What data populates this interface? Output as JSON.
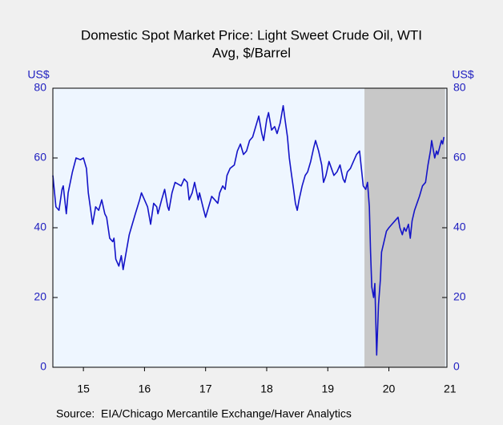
{
  "chart_data": {
    "type": "line",
    "title": [
      "Domestic Spot Market Price: Light Sweet Crude Oil, WTI",
      "Avg, $/Barrel"
    ],
    "ylabel": "US$",
    "y2label": "US$",
    "source": "Source:  EIA/Chicago Mercantile Exchange/Haver Analytics",
    "x": [
      2015.0,
      2015.05,
      2015.1,
      2015.15,
      2015.17,
      2015.22,
      2015.25,
      2015.32,
      2015.38,
      2015.45,
      2015.5,
      2015.55,
      2015.58,
      2015.62,
      2015.65,
      2015.7,
      2015.75,
      2015.8,
      2015.85,
      2015.88,
      2015.93,
      2015.98,
      2016.0,
      2016.03,
      2016.08,
      2016.12,
      2016.15,
      2016.2,
      2016.25,
      2016.3,
      2016.35,
      2016.42,
      2016.45,
      2016.5,
      2016.55,
      2016.6,
      2016.65,
      2016.7,
      2016.72,
      2016.78,
      2016.83,
      2016.88,
      2016.9,
      2016.95,
      2017.0,
      2017.1,
      2017.15,
      2017.2,
      2017.23,
      2017.28,
      2017.32,
      2017.38,
      2017.4,
      2017.47,
      2017.5,
      2017.55,
      2017.6,
      2017.65,
      2017.7,
      2017.73,
      2017.78,
      2017.82,
      2017.85,
      2017.9,
      2017.97,
      2018.02,
      2018.07,
      2018.12,
      2018.17,
      2018.22,
      2018.27,
      2018.32,
      2018.37,
      2018.42,
      2018.45,
      2018.5,
      2018.53,
      2018.58,
      2018.63,
      2018.67,
      2018.72,
      2018.77,
      2018.8,
      2018.84,
      2018.87,
      2018.9,
      2018.94,
      2018.97,
      2019.0,
      2019.03,
      2019.08,
      2019.13,
      2019.17,
      2019.22,
      2019.27,
      2019.3,
      2019.35,
      2019.4,
      2019.43,
      2019.47,
      2019.52,
      2019.56,
      2019.6,
      2019.65,
      2019.7,
      2019.75,
      2019.78,
      2019.82,
      2019.87,
      2019.92,
      2019.97,
      2020.02,
      2020.05,
      2020.08,
      2020.12,
      2020.15,
      2020.18,
      2020.2,
      2020.22,
      2020.25,
      2020.27,
      2020.3,
      2020.33,
      2020.36,
      2020.38,
      2020.42,
      2020.46,
      2020.5,
      2020.55,
      2020.6,
      2020.65,
      2020.68,
      2020.72,
      2020.75,
      2020.78,
      2020.82,
      2020.85,
      2020.88,
      2020.92,
      2020.96,
      2021.0,
      2021.05,
      2021.1,
      2021.14,
      2021.18,
      2021.2,
      2021.22,
      2021.25,
      2021.28,
      2021.3,
      2021.33,
      2021.36,
      2021.38,
      2021.4
    ],
    "series": [
      {
        "color": "#1414c8",
        "values": [
          55,
          46,
          45,
          51,
          52,
          44,
          50,
          56,
          60,
          59.5,
          60,
          57,
          50,
          45,
          41,
          46,
          45,
          48,
          44,
          43,
          37,
          36,
          37,
          31,
          29,
          32,
          28,
          33,
          38,
          41,
          44,
          48,
          50,
          48,
          46,
          41,
          47,
          46,
          44,
          48,
          51,
          46,
          45,
          50,
          53,
          52,
          54,
          53,
          48,
          50,
          53,
          48,
          50,
          45,
          43,
          46,
          49,
          48,
          47,
          50,
          52,
          51,
          55,
          57,
          58,
          62,
          64,
          61,
          62,
          65,
          66,
          69,
          72,
          67,
          65,
          71,
          73,
          68,
          69,
          67,
          70,
          75,
          71,
          66,
          60,
          56,
          51,
          47,
          45,
          48,
          52,
          55,
          56,
          59,
          63,
          65,
          62,
          58,
          53,
          55,
          59,
          57,
          55,
          56,
          58,
          54,
          53,
          56,
          57,
          59,
          61,
          62,
          57,
          52,
          51,
          53,
          46,
          33,
          23,
          20,
          24,
          3.5,
          18,
          25,
          33,
          36,
          39,
          40,
          41,
          42,
          43,
          40,
          38,
          40,
          39,
          41,
          37,
          42,
          45,
          47,
          49,
          52,
          53,
          58,
          62,
          65,
          63,
          60,
          62,
          61,
          63,
          65,
          64,
          66
        ]
      }
    ],
    "xlim": [
      2015.0,
      2021.45
    ],
    "xticks": [
      {
        "value": 2015.5,
        "label": "15"
      },
      {
        "value": 2016.5,
        "label": "16"
      },
      {
        "value": 2017.5,
        "label": "17"
      },
      {
        "value": 2018.5,
        "label": "18"
      },
      {
        "value": 2019.5,
        "label": "19"
      },
      {
        "value": 2020.5,
        "label": "20"
      },
      {
        "value": 2021.5,
        "label": "21"
      }
    ],
    "ylim": [
      0,
      80
    ],
    "yticks": [
      0,
      20,
      40,
      60,
      80
    ],
    "y2lim": [
      0,
      80
    ],
    "y2ticks": [
      0,
      20,
      40,
      60,
      80
    ],
    "shade": [
      2020.1,
      2021.42
    ],
    "shade_color": "#c8c8c8",
    "plot_background": "#eef6ff",
    "axis_color": "#2020c0"
  }
}
